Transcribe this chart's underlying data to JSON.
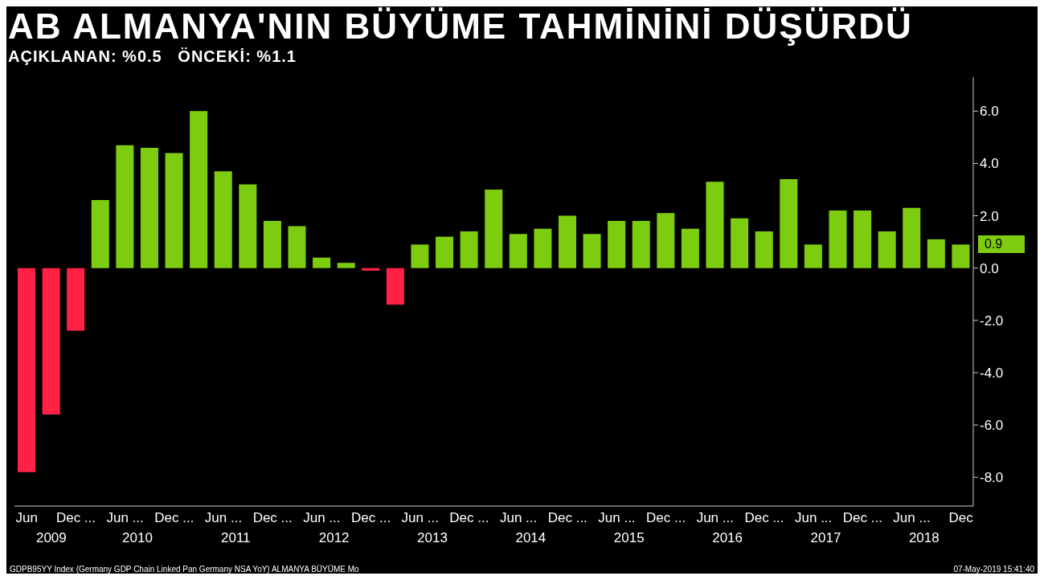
{
  "chart_data": {
    "type": "bar",
    "title": "AB ALMANYA'NIN BÜYÜME TAHMİNİNİ DÜŞÜRDÜ",
    "subtitle": "AÇIKLANAN: %0.5   ÖNCEKİ: %1.1",
    "categories": [
      "Jun",
      null,
      "Dec ...",
      null,
      "Jun ...",
      null,
      "Dec ...",
      null,
      "Jun ...",
      null,
      "Dec ...",
      null,
      "Jun ...",
      null,
      "Dec ...",
      null,
      "Jun ...",
      null,
      "Dec ...",
      null,
      "Jun ...",
      null,
      "Dec ...",
      null,
      "Jun ...",
      null,
      "Dec ...",
      null,
      "Jun ...",
      null,
      "Dec ...",
      null,
      "Jun ...",
      null,
      "Dec ...",
      null,
      "Jun ...",
      null,
      "Dec"
    ],
    "values": [
      -7.8,
      -5.6,
      -2.4,
      2.6,
      4.7,
      4.6,
      4.4,
      6.0,
      3.7,
      3.2,
      1.8,
      1.6,
      0.4,
      0.2,
      -0.1,
      -1.4,
      0.9,
      1.2,
      1.4,
      3.0,
      1.3,
      1.5,
      2.0,
      1.3,
      1.8,
      1.8,
      2.1,
      1.5,
      3.3,
      1.9,
      1.4,
      3.4,
      0.9,
      2.2,
      2.2,
      1.4,
      2.3,
      1.1,
      0.9
    ],
    "colors": [
      "#ff2244",
      "#ff2244",
      "#ff2244",
      "#7dcc0f",
      "#7dcc0f",
      "#7dcc0f",
      "#7dcc0f",
      "#7dcc0f",
      "#7dcc0f",
      "#7dcc0f",
      "#7dcc0f",
      "#7dcc0f",
      "#7dcc0f",
      "#7dcc0f",
      "#ff2244",
      "#ff2244",
      "#7dcc0f",
      "#7dcc0f",
      "#7dcc0f",
      "#7dcc0f",
      "#7dcc0f",
      "#7dcc0f",
      "#7dcc0f",
      "#7dcc0f",
      "#7dcc0f",
      "#7dcc0f",
      "#7dcc0f",
      "#7dcc0f",
      "#7dcc0f",
      "#7dcc0f",
      "#7dcc0f",
      "#7dcc0f",
      "#7dcc0f",
      "#7dcc0f",
      "#7dcc0f",
      "#7dcc0f",
      "#7dcc0f",
      "#7dcc0f",
      "#7dcc0f"
    ],
    "ylim": [
      -9.1,
      7.3
    ],
    "yticks": [
      {
        "value": -8,
        "label": "-8.0"
      },
      {
        "value": -6,
        "label": "-6.0"
      },
      {
        "value": -4,
        "label": "-4.0"
      },
      {
        "value": -2,
        "label": "-2.0"
      },
      {
        "value": 0,
        "label": "0.0"
      },
      {
        "value": 2,
        "label": "2.0"
      },
      {
        "value": 4,
        "label": "4.0"
      },
      {
        "value": 6,
        "label": "6.0"
      }
    ],
    "grid": false,
    "legend": false,
    "annotations": [
      "2009",
      "2010",
      "2011",
      "2012",
      "2013",
      "2014",
      "2015",
      "2016",
      "2017",
      "2018",
      "GDPB95YY Index (Germany GDP Chain Linked Pan Germany NSA YoY) ALMANYA BÜYÜME  Mo",
      "07-May-2019 15:41:40",
      "0.9"
    ]
  }
}
